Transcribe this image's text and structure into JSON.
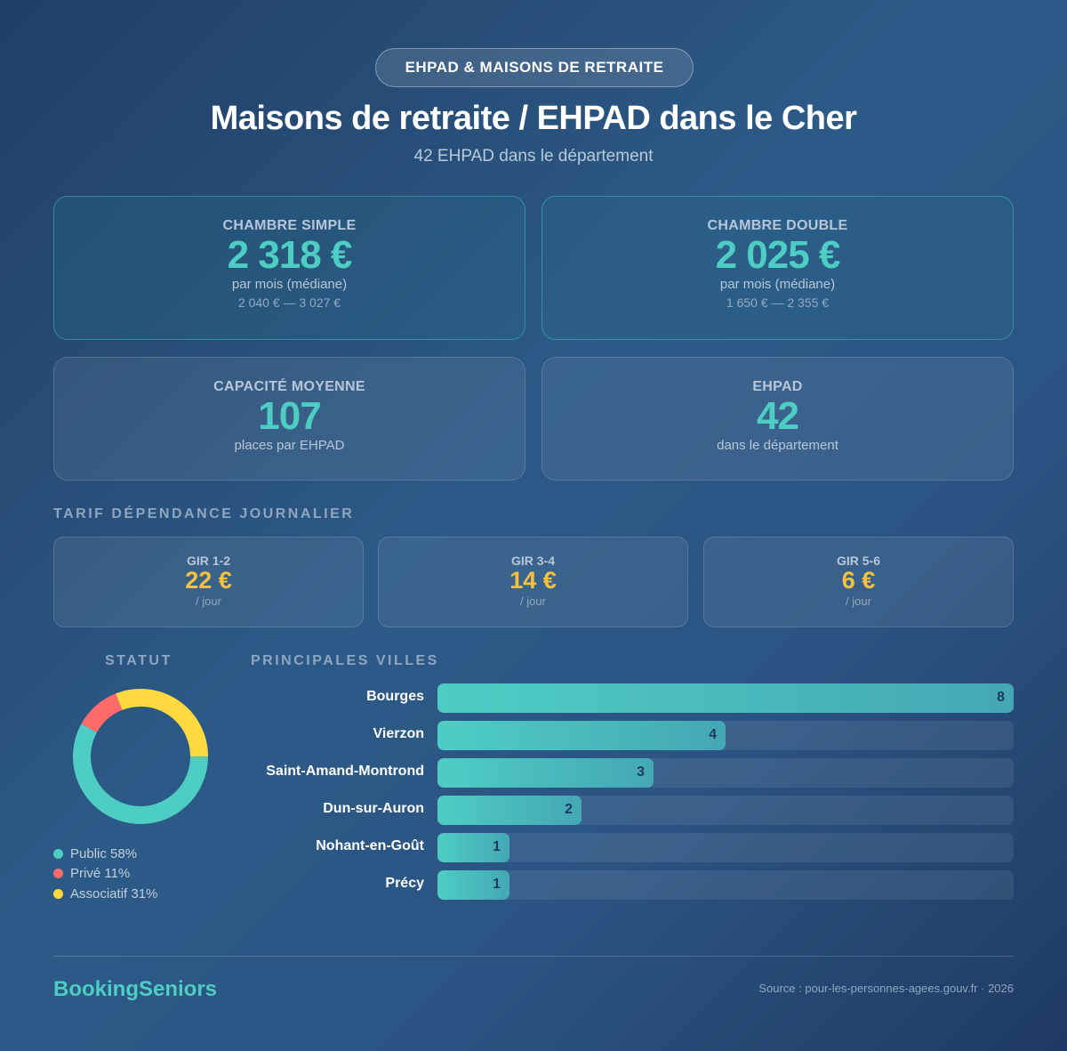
{
  "badge": "EHPAD & MAISONS DE RETRAITE",
  "title": "Maisons de retraite / EHPAD dans le Cher",
  "subtitle": "42 EHPAD dans le département",
  "cards": [
    {
      "label": "CHAMBRE SIMPLE",
      "value": "2 318 €",
      "sub": "par mois (médiane)",
      "range": "2 040 € — 3 027 €"
    },
    {
      "label": "CHAMBRE DOUBLE",
      "value": "2 025 €",
      "sub": "par mois (médiane)",
      "range": "1 650 € — 2 355 €"
    },
    {
      "label": "CAPACITÉ MOYENNE",
      "value": "107",
      "sub": "places par EHPAD"
    },
    {
      "label": "EHPAD",
      "value": "42",
      "sub": "dans le département"
    }
  ],
  "gir_title": "TARIF DÉPENDANCE JOURNALIER",
  "gir": [
    {
      "label": "GIR 1-2",
      "value": "22 €",
      "unit": "/ jour"
    },
    {
      "label": "GIR 3-4",
      "value": "14 €",
      "unit": "/ jour"
    },
    {
      "label": "GIR 5-6",
      "value": "6 €",
      "unit": "/ jour"
    }
  ],
  "chart_data": [
    {
      "type": "pie",
      "title": "STATUT",
      "donut": true,
      "slices": [
        {
          "name": "Public",
          "value": 58,
          "label": "Public 58%",
          "color": "#4ecdc4"
        },
        {
          "name": "Privé",
          "value": 11,
          "label": "Privé 11%",
          "color": "#ff6b6b"
        },
        {
          "name": "Associatif",
          "value": 31,
          "label": "Associatif 31%",
          "color": "#ffd93d"
        }
      ]
    },
    {
      "type": "bar",
      "orientation": "horizontal",
      "title": "PRINCIPALES VILLES",
      "categories": [
        "Bourges",
        "Vierzon",
        "Saint-Amand-Montrond",
        "Dun-sur-Auron",
        "Nohant-en-Goût",
        "Précy"
      ],
      "values": [
        8,
        4,
        3,
        2,
        1,
        1
      ],
      "xlim": [
        0,
        8
      ]
    }
  ],
  "footer": {
    "brand": "BookingSeniors",
    "source": "Source : pour-les-personnes-agees.gouv.fr · 2026"
  }
}
